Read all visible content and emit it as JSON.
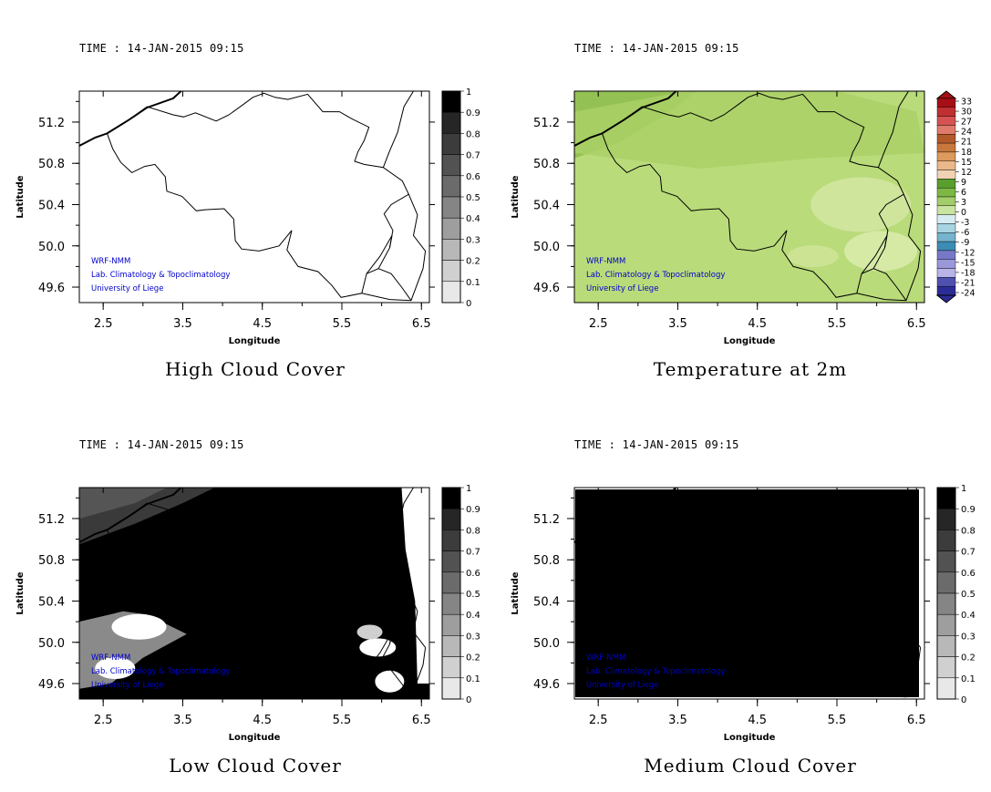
{
  "chart_data": [
    {
      "type": "heatmap",
      "title": "High Cloud Cover",
      "time_label": "TIME : 14-JAN-2015 09:15",
      "xlabel": "Longitude",
      "ylabel": "Latitude",
      "xlim": [
        2.2,
        6.6
      ],
      "ylim": [
        49.45,
        51.5
      ],
      "xticks": [
        "2.5",
        "3.5",
        "4.5",
        "5.5",
        "6.5"
      ],
      "yticks": [
        "51.2",
        "50.8",
        "50.4",
        "50.0",
        "49.6"
      ],
      "colorbar": {
        "labels": [
          "1",
          "0.9",
          "0.8",
          "0.7",
          "0.6",
          "0.5",
          "0.4",
          "0.3",
          "0.2",
          "0.1",
          "0"
        ],
        "colors": [
          "#000000",
          "#262626",
          "#3c3c3c",
          "#525252",
          "#6b6b6b",
          "#858585",
          "#9e9e9e",
          "#b8b8b8",
          "#d0d0d0",
          "#e8e8e8"
        ]
      },
      "field": "clear",
      "credits": [
        "WRF-NMM",
        "Lab. Climatology & Topoclimatology",
        "University of Liege"
      ],
      "credits_color": "#0000cc"
    },
    {
      "type": "heatmap",
      "title": "Temperature at 2m",
      "time_label": "TIME : 14-JAN-2015 09:15",
      "xlabel": "Longitude",
      "ylabel": "Latitude",
      "xlim": [
        2.2,
        6.6
      ],
      "ylim": [
        49.45,
        51.5
      ],
      "xticks": [
        "2.5",
        "3.5",
        "4.5",
        "5.5",
        "6.5"
      ],
      "yticks": [
        "51.2",
        "50.8",
        "50.4",
        "50.0",
        "49.6"
      ],
      "colorbar": {
        "labels": [
          "33",
          "30",
          "27",
          "24",
          "21",
          "18",
          "15",
          "12",
          "9",
          "6",
          "3",
          "0",
          "-3",
          "-6",
          "-9",
          "-12",
          "-15",
          "-18",
          "-21",
          "-24"
        ],
        "colors": [
          "#a50f15",
          "#c03030",
          "#d65252",
          "#e07a6a",
          "#b35a2a",
          "#c8783c",
          "#dc9a5c",
          "#eab88a",
          "#f2d2b4",
          "#5a9e2e",
          "#7db844",
          "#a3cc6a",
          "#c9e3a0",
          "#d7ecf2",
          "#a8d4e2",
          "#74b4cc",
          "#3c8cb4",
          "#7878c8",
          "#9a98da",
          "#b8b4e8",
          "#5050b0",
          "#2c2c96"
        ]
      },
      "field": "temperature",
      "credits": [
        "WRF-NMM",
        "Lab. Climatology & Topoclimatology",
        "University of Liege"
      ],
      "credits_color": "#0000cc"
    },
    {
      "type": "heatmap",
      "title": "Low Cloud Cover",
      "time_label": "TIME : 14-JAN-2015 09:15",
      "xlabel": "Longitude",
      "ylabel": "Latitude",
      "xlim": [
        2.2,
        6.6
      ],
      "ylim": [
        49.45,
        51.5
      ],
      "xticks": [
        "2.5",
        "3.5",
        "4.5",
        "5.5",
        "6.5"
      ],
      "yticks": [
        "51.2",
        "50.8",
        "50.4",
        "50.0",
        "49.6"
      ],
      "colorbar": {
        "labels": [
          "1",
          "0.9",
          "0.8",
          "0.7",
          "0.6",
          "0.5",
          "0.4",
          "0.3",
          "0.2",
          "0.1",
          "0"
        ],
        "colors": [
          "#000000",
          "#262626",
          "#3c3c3c",
          "#525252",
          "#6b6b6b",
          "#858585",
          "#9e9e9e",
          "#b8b8b8",
          "#d0d0d0",
          "#e8e8e8"
        ]
      },
      "field": "lowcloud",
      "credits": [
        "WRF-NMM",
        "Lab. Climatology & Topoclimatology",
        "University of Liege"
      ],
      "credits_color": "#0000cc"
    },
    {
      "type": "heatmap",
      "title": "Medium Cloud Cover",
      "time_label": "TIME : 14-JAN-2015 09:15",
      "xlabel": "Longitude",
      "ylabel": "Latitude",
      "xlim": [
        2.2,
        6.6
      ],
      "ylim": [
        49.45,
        51.5
      ],
      "xticks": [
        "2.5",
        "3.5",
        "4.5",
        "5.5",
        "6.5"
      ],
      "yticks": [
        "51.2",
        "50.8",
        "50.4",
        "50.0",
        "49.6"
      ],
      "colorbar": {
        "labels": [
          "1",
          "0.9",
          "0.8",
          "0.7",
          "0.6",
          "0.5",
          "0.4",
          "0.3",
          "0.2",
          "0.1",
          "0"
        ],
        "colors": [
          "#000000",
          "#262626",
          "#3c3c3c",
          "#525252",
          "#6b6b6b",
          "#858585",
          "#9e9e9e",
          "#b8b8b8",
          "#d0d0d0",
          "#e8e8e8"
        ]
      },
      "field": "overcast",
      "credits": [
        "WRF-NMM",
        "Lab. Climatology & Topoclimatology",
        "University of Liege"
      ],
      "credits_color": "#0000cc"
    }
  ]
}
